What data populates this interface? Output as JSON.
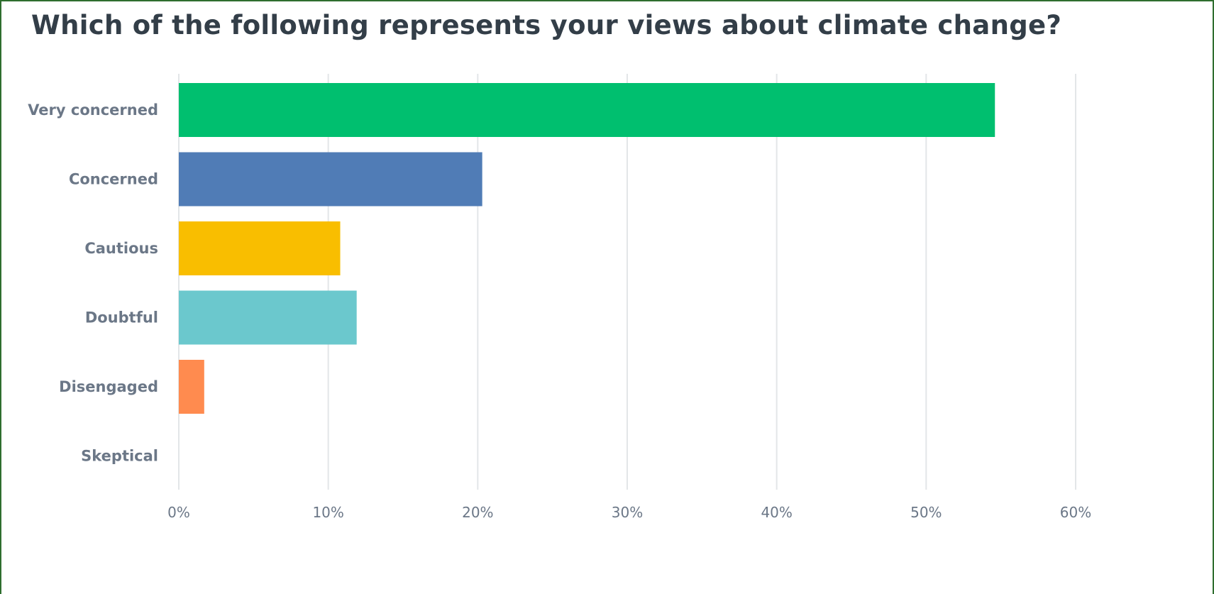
{
  "chart_data": {
    "type": "bar",
    "orientation": "horizontal",
    "title": "Which of the following represents your views about climate change?",
    "categories": [
      "Very concerned",
      "Concerned",
      "Cautious",
      "Doubtful",
      "Disengaged",
      "Skeptical"
    ],
    "values": [
      54.6,
      20.3,
      10.8,
      11.9,
      1.7,
      0
    ],
    "value_unit": "%",
    "colors": [
      "#00bf6f",
      "#507cb6",
      "#f9be00",
      "#6bc8cd",
      "#ff8b4f",
      "#9e9e9e"
    ],
    "xlim": [
      0,
      60
    ],
    "xticks": [
      0,
      10,
      20,
      30,
      40,
      50,
      60
    ],
    "xtick_labels": [
      "0%",
      "10%",
      "20%",
      "30%",
      "40%",
      "50%",
      "60%"
    ],
    "grid": true,
    "xlabel": "",
    "ylabel": ""
  }
}
